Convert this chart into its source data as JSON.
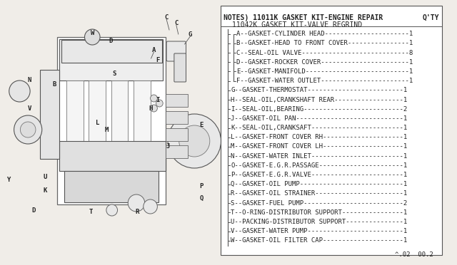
{
  "bg_color": "#f0ede8",
  "title_line1": "NOTES) 11011K GASKET KIT-ENGINE REPAIR",
  "title_qty": "Q'TY",
  "title_line2": "11042K GASKET KIT-VALVE REGRIND",
  "parts": [
    {
      "label": "A",
      "desc": "GASKET-CYLINDER HEAD",
      "qty": "1",
      "indent": 2
    },
    {
      "label": "B",
      "desc": "GASKET-HEAD TO FRONT COVER",
      "qty": "1",
      "indent": 2
    },
    {
      "label": "C",
      "desc": "SEAL-OIL VALVE",
      "qty": "8",
      "indent": 2
    },
    {
      "label": "D",
      "desc": "GASKET-ROCKER COVER",
      "qty": "1",
      "indent": 2
    },
    {
      "label": "E",
      "desc": "GASKET-MANIFOLD",
      "qty": "1",
      "indent": 2
    },
    {
      "label": "F",
      "desc": "GASKET-WATER OUTLET",
      "qty": "1",
      "indent": 2
    },
    {
      "label": "G",
      "desc": "GASKET-THERMOSTAT",
      "qty": "1",
      "indent": 1
    },
    {
      "label": "H",
      "desc": "SEAL-OIL,CRANKSHAFT REAR",
      "qty": "1",
      "indent": 1
    },
    {
      "label": "I",
      "desc": "SEAL-OIL,BEARING",
      "qty": "2",
      "indent": 1
    },
    {
      "label": "J",
      "desc": "GASKET-OIL PAN",
      "qty": "1",
      "indent": 1
    },
    {
      "label": "K",
      "desc": "SEAL-OIL,CRANKSAFT",
      "qty": "1",
      "indent": 1
    },
    {
      "label": "L",
      "desc": "GASKET-FRONT COVER RH",
      "qty": "1",
      "indent": 1
    },
    {
      "label": "M",
      "desc": "GASKET-FRONT COVER LH",
      "qty": "1",
      "indent": 1
    },
    {
      "label": "N",
      "desc": "GASKET-WATER INLET",
      "qty": "1",
      "indent": 1
    },
    {
      "label": "O",
      "desc": "GASKET-E.G.R.PASSAGE",
      "qty": "1",
      "indent": 1
    },
    {
      "label": "P",
      "desc": "GASKET-E.G.R.VALVE",
      "qty": "1",
      "indent": 1
    },
    {
      "label": "Q",
      "desc": "GASKET-OIL PUMP",
      "qty": "1",
      "indent": 1
    },
    {
      "label": "R",
      "desc": "GASKET-OIL STRAINER",
      "qty": "1",
      "indent": 1
    },
    {
      "label": "S",
      "desc": "GASKET-FUEL PUMP",
      "qty": "2",
      "indent": 1
    },
    {
      "label": "T",
      "desc": "O-RING-DISTRIBUTOR SUPPORT",
      "qty": "1",
      "indent": 1
    },
    {
      "label": "U",
      "desc": "PACKING-DISTRIBUTOR SUPPORT",
      "qty": "1",
      "indent": 1
    },
    {
      "label": "V",
      "desc": "GASKET-WATER PUMP",
      "qty": "1",
      "indent": 1
    },
    {
      "label": "W",
      "desc": "GASKET-OIL FILTER CAP",
      "qty": "1",
      "indent": 1
    }
  ],
  "footer": "^.02  00.2",
  "text_color": "#222222",
  "line_color": "#555555",
  "font_size": 6.5,
  "title_font_size": 7.0
}
